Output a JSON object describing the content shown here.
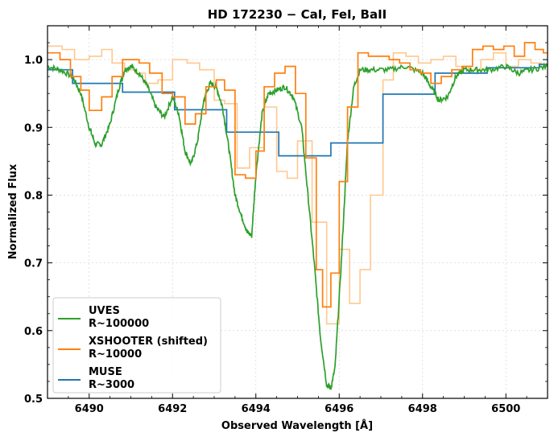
{
  "chart_data": {
    "type": "line",
    "title": "HD 172230 − CaI, FeI, BaII",
    "xlabel": "Observed Wavelength [Å]",
    "ylabel": "Normalized Flux",
    "xlim": [
      6489.0,
      6501.0
    ],
    "ylim": [
      0.5,
      1.05
    ],
    "x_ticks": [
      "6490",
      "6492",
      "6494",
      "6496",
      "6498",
      "6500"
    ],
    "y_ticks": [
      "0.5",
      "0.6",
      "0.7",
      "0.8",
      "0.9",
      "1.0"
    ],
    "grid": true,
    "legend_position": "bottom-left",
    "colors": {
      "uves": "#2ca02c",
      "xshooter": "#ff7f0e",
      "xshooter_faint": "#ffc88f",
      "muse": "#1f77b4"
    },
    "legend": [
      {
        "line1": "UVES",
        "line2": "R~100000",
        "color": "#2ca02c"
      },
      {
        "line1": "XSHOOTER (shifted)",
        "line2": "R~10000",
        "color": "#ff7f0e"
      },
      {
        "line1": "MUSE",
        "line2": "R~3000",
        "color": "#1f77b4"
      }
    ],
    "series": [
      {
        "name": "UVES",
        "label": "R~100000",
        "style": "line",
        "x": [
          6489.0,
          6489.3,
          6489.6,
          6489.8,
          6490.0,
          6490.15,
          6490.3,
          6490.5,
          6490.7,
          6490.85,
          6491.0,
          6491.2,
          6491.4,
          6491.6,
          6491.8,
          6492.0,
          6492.15,
          6492.3,
          6492.45,
          6492.6,
          6492.75,
          6492.9,
          6493.05,
          6493.2,
          6493.35,
          6493.5,
          6493.65,
          6493.8,
          6493.9,
          6494.0,
          6494.15,
          6494.3,
          6494.5,
          6494.7,
          6494.9,
          6495.1,
          6495.25,
          6495.4,
          6495.55,
          6495.7,
          6495.8,
          6495.9,
          6496.05,
          6496.2,
          6496.35,
          6496.5,
          6496.8,
          6497.2,
          6497.6,
          6498.0,
          6498.2,
          6498.4,
          6498.6,
          6498.8,
          6499.0,
          6499.3,
          6499.6,
          6500.0,
          6500.3,
          6500.6,
          6501.0
        ],
        "y": [
          0.99,
          0.985,
          0.975,
          0.95,
          0.9,
          0.875,
          0.875,
          0.905,
          0.955,
          0.985,
          0.99,
          0.98,
          0.96,
          0.93,
          0.915,
          0.945,
          0.92,
          0.865,
          0.845,
          0.88,
          0.94,
          0.965,
          0.96,
          0.93,
          0.87,
          0.8,
          0.77,
          0.745,
          0.74,
          0.83,
          0.92,
          0.95,
          0.955,
          0.96,
          0.945,
          0.9,
          0.8,
          0.7,
          0.59,
          0.52,
          0.515,
          0.545,
          0.7,
          0.88,
          0.96,
          0.985,
          0.985,
          0.985,
          0.99,
          0.98,
          0.96,
          0.94,
          0.945,
          0.975,
          0.985,
          0.985,
          0.985,
          0.99,
          0.98,
          0.985,
          0.99
        ]
      },
      {
        "name": "XSHOOTER (shifted)",
        "label": "R~10000",
        "style": "step",
        "x": [
          6489.0,
          6489.3,
          6489.55,
          6489.8,
          6490.0,
          6490.3,
          6490.55,
          6490.8,
          6491.0,
          6491.2,
          6491.45,
          6491.75,
          6492.0,
          6492.3,
          6492.55,
          6492.8,
          6493.05,
          6493.25,
          6493.5,
          6493.75,
          6494.0,
          6494.2,
          6494.45,
          6494.7,
          6494.95,
          6495.2,
          6495.45,
          6495.6,
          6495.8,
          6496.0,
          6496.2,
          6496.45,
          6496.7,
          6497.0,
          6497.2,
          6497.45,
          6497.7,
          6497.95,
          6498.2,
          6498.45,
          6498.7,
          6498.95,
          6499.2,
          6499.45,
          6499.7,
          6499.95,
          6500.2,
          6500.45,
          6500.7,
          6500.9
        ],
        "y": [
          1.01,
          1.0,
          0.975,
          0.955,
          0.925,
          0.945,
          0.975,
          1.0,
          1.0,
          0.995,
          0.98,
          0.95,
          0.945,
          0.905,
          0.92,
          0.96,
          0.97,
          0.955,
          0.83,
          0.825,
          0.865,
          0.96,
          0.98,
          0.99,
          0.95,
          0.855,
          0.69,
          0.635,
          0.685,
          0.82,
          0.93,
          1.01,
          1.005,
          1.005,
          1.0,
          0.995,
          0.985,
          0.98,
          0.965,
          0.975,
          0.985,
          0.99,
          1.015,
          1.02,
          1.015,
          1.02,
          1.005,
          1.025,
          1.015,
          1.01
        ]
      },
      {
        "name": "XSHOOTER faint",
        "style": "step",
        "faint": true,
        "x": [
          6489.0,
          6489.35,
          6489.65,
          6490.0,
          6490.3,
          6490.55,
          6490.85,
          6491.1,
          6491.35,
          6491.65,
          6492.0,
          6492.35,
          6492.65,
          6493.0,
          6493.25,
          6493.55,
          6493.85,
          6494.2,
          6494.5,
          6494.75,
          6495.0,
          6495.35,
          6495.7,
          6496.0,
          6496.25,
          6496.5,
          6496.75,
          6497.05,
          6497.3,
          6497.6,
          6497.9,
          6498.2,
          6498.5,
          6498.8,
          6499.1,
          6499.4,
          6499.7,
          6500.0,
          6500.3,
          6500.6,
          6500.85
        ],
        "y": [
          1.02,
          1.015,
          1.0,
          1.005,
          1.015,
          0.995,
          0.985,
          0.98,
          0.965,
          0.97,
          1.0,
          0.995,
          0.985,
          0.94,
          0.935,
          0.84,
          0.87,
          0.93,
          0.835,
          0.825,
          0.88,
          0.76,
          0.61,
          0.72,
          0.64,
          0.69,
          0.8,
          0.97,
          1.01,
          1.005,
          0.995,
          1.0,
          1.005,
          0.99,
          0.985,
          1.0,
          1.01,
          0.99,
          1.0,
          0.995,
          0.99
        ]
      },
      {
        "name": "MUSE",
        "label": "R~3000",
        "style": "step",
        "x": [
          6489.0,
          6489.6,
          6490.8,
          6492.05,
          6493.3,
          6494.55,
          6495.8,
          6497.05,
          6498.3,
          6499.55,
          6500.8
        ],
        "y": [
          0.985,
          0.965,
          0.952,
          0.926,
          0.893,
          0.858,
          0.877,
          0.949,
          0.98,
          0.988,
          0.993
        ]
      }
    ]
  }
}
